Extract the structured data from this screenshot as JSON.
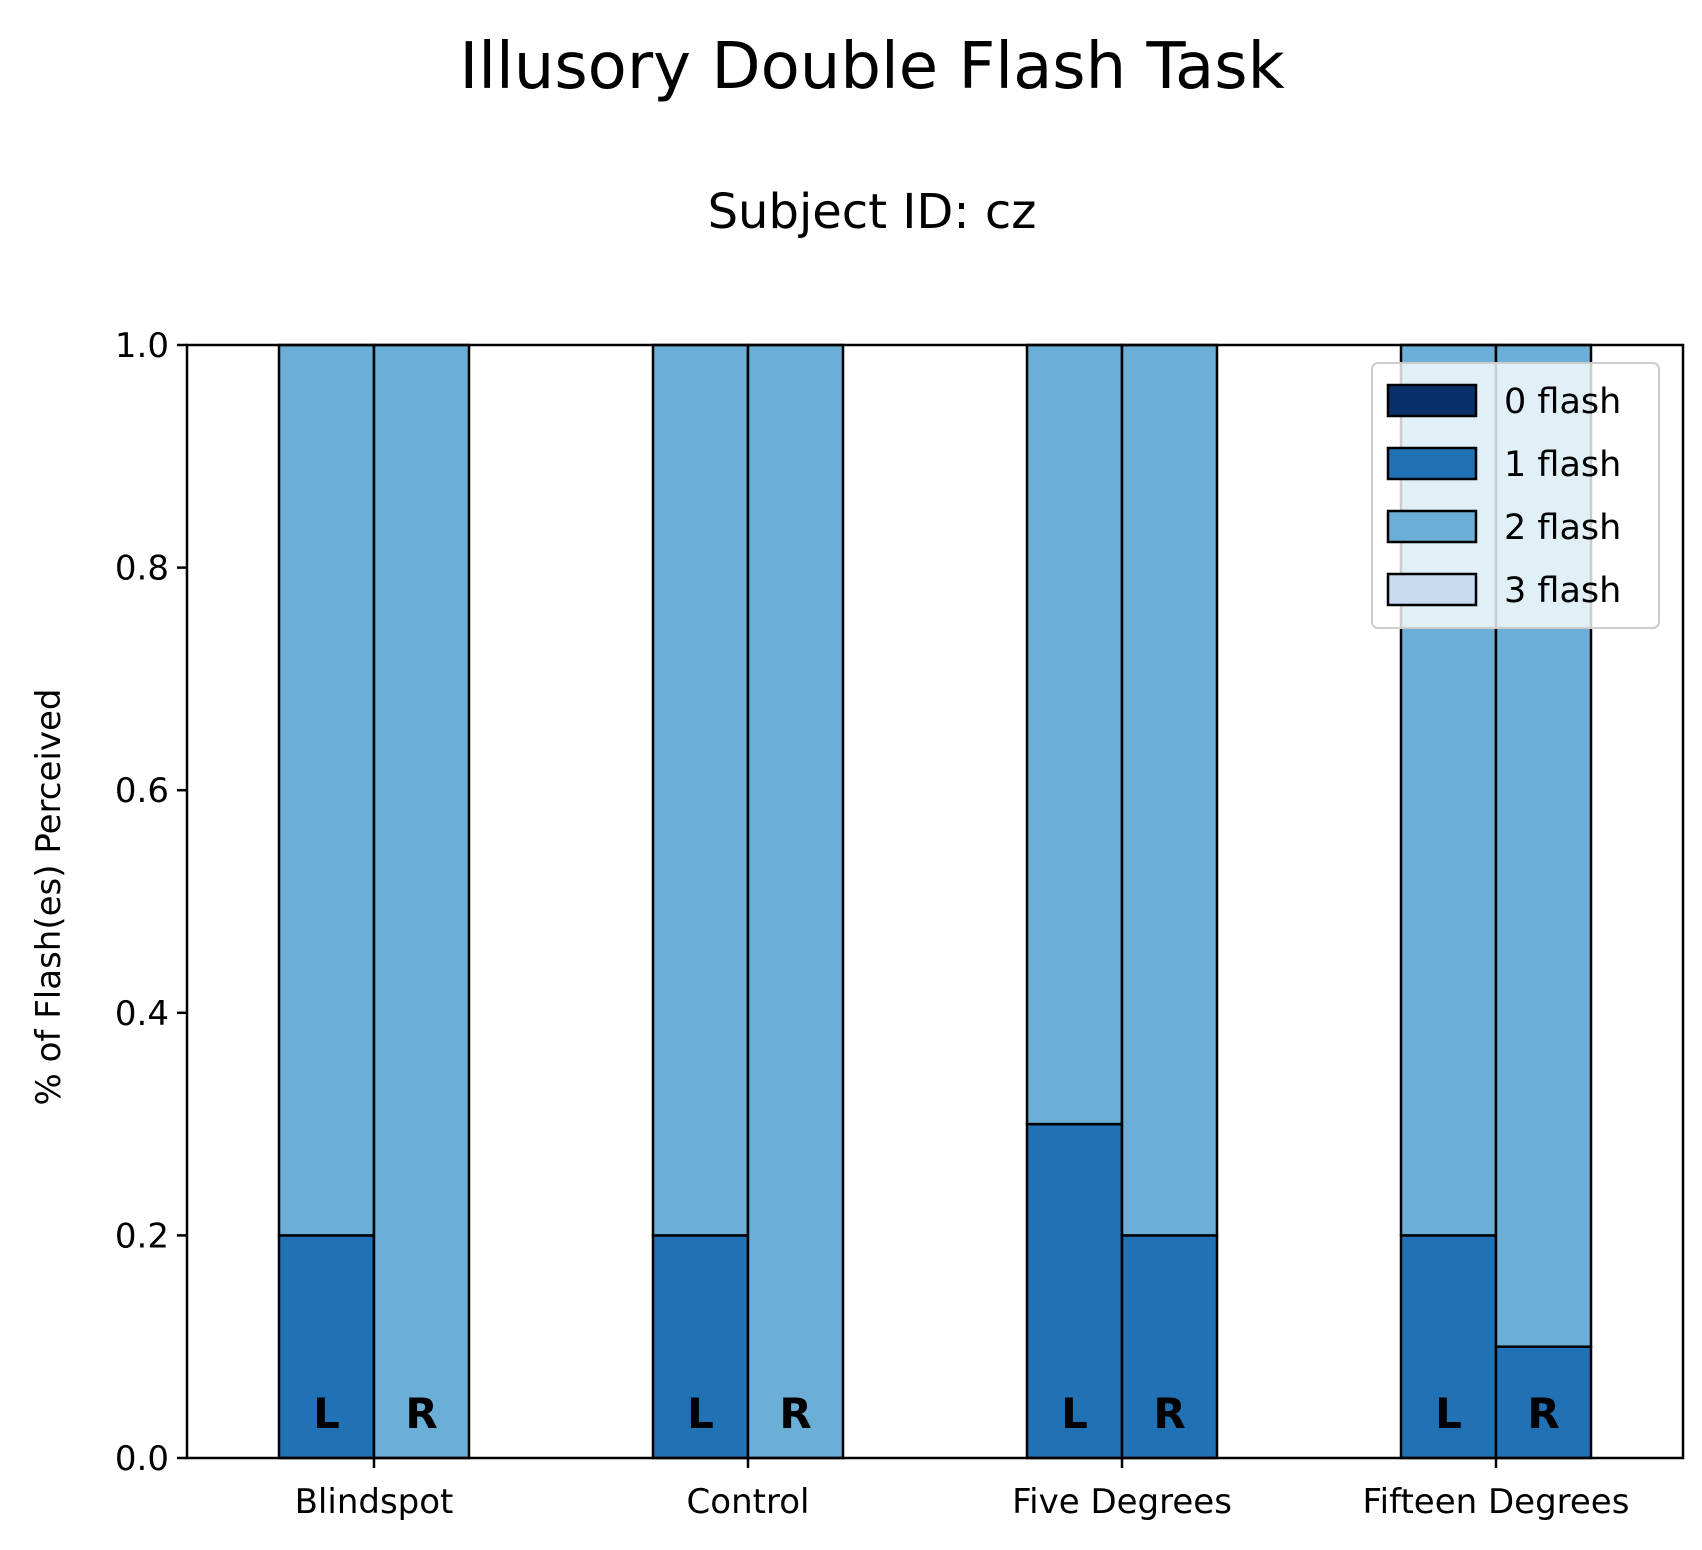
{
  "chart_data": {
    "type": "bar",
    "stacked": true,
    "title": "Illusory Double Flash Task",
    "subtitle": "Subject ID: cz",
    "xlabel": "",
    "ylabel": "% of Flash(es) Perceived",
    "ylim": [
      0,
      1.0
    ],
    "yticks": [
      "0.0",
      "0.2",
      "0.4",
      "0.6",
      "0.8",
      "1.0"
    ],
    "categories": [
      "Blindspot",
      "Control",
      "Five Degrees",
      "Fifteen Degrees"
    ],
    "bar_groups": [
      "L",
      "R"
    ],
    "series": [
      {
        "name": "0 flash",
        "color": "#08306b",
        "values": {
          "L": [
            0,
            0,
            0,
            0
          ],
          "R": [
            0,
            0,
            0,
            0
          ]
        }
      },
      {
        "name": "1 flash",
        "color": "#2171b5",
        "values": {
          "L": [
            0.2,
            0.2,
            0.3,
            0.2
          ],
          "R": [
            0.0,
            0.0,
            0.2,
            0.1
          ]
        }
      },
      {
        "name": "2 flash",
        "color": "#6baed6",
        "values": {
          "L": [
            0.8,
            0.8,
            0.7,
            0.8
          ],
          "R": [
            1.0,
            1.0,
            0.8,
            0.9
          ]
        }
      },
      {
        "name": "3 flash",
        "color": "#c6dbef",
        "values": {
          "L": [
            0,
            0,
            0,
            0
          ],
          "R": [
            0,
            0,
            0,
            0
          ]
        }
      }
    ],
    "legend": {
      "position": "top-right"
    },
    "grid": false
  }
}
